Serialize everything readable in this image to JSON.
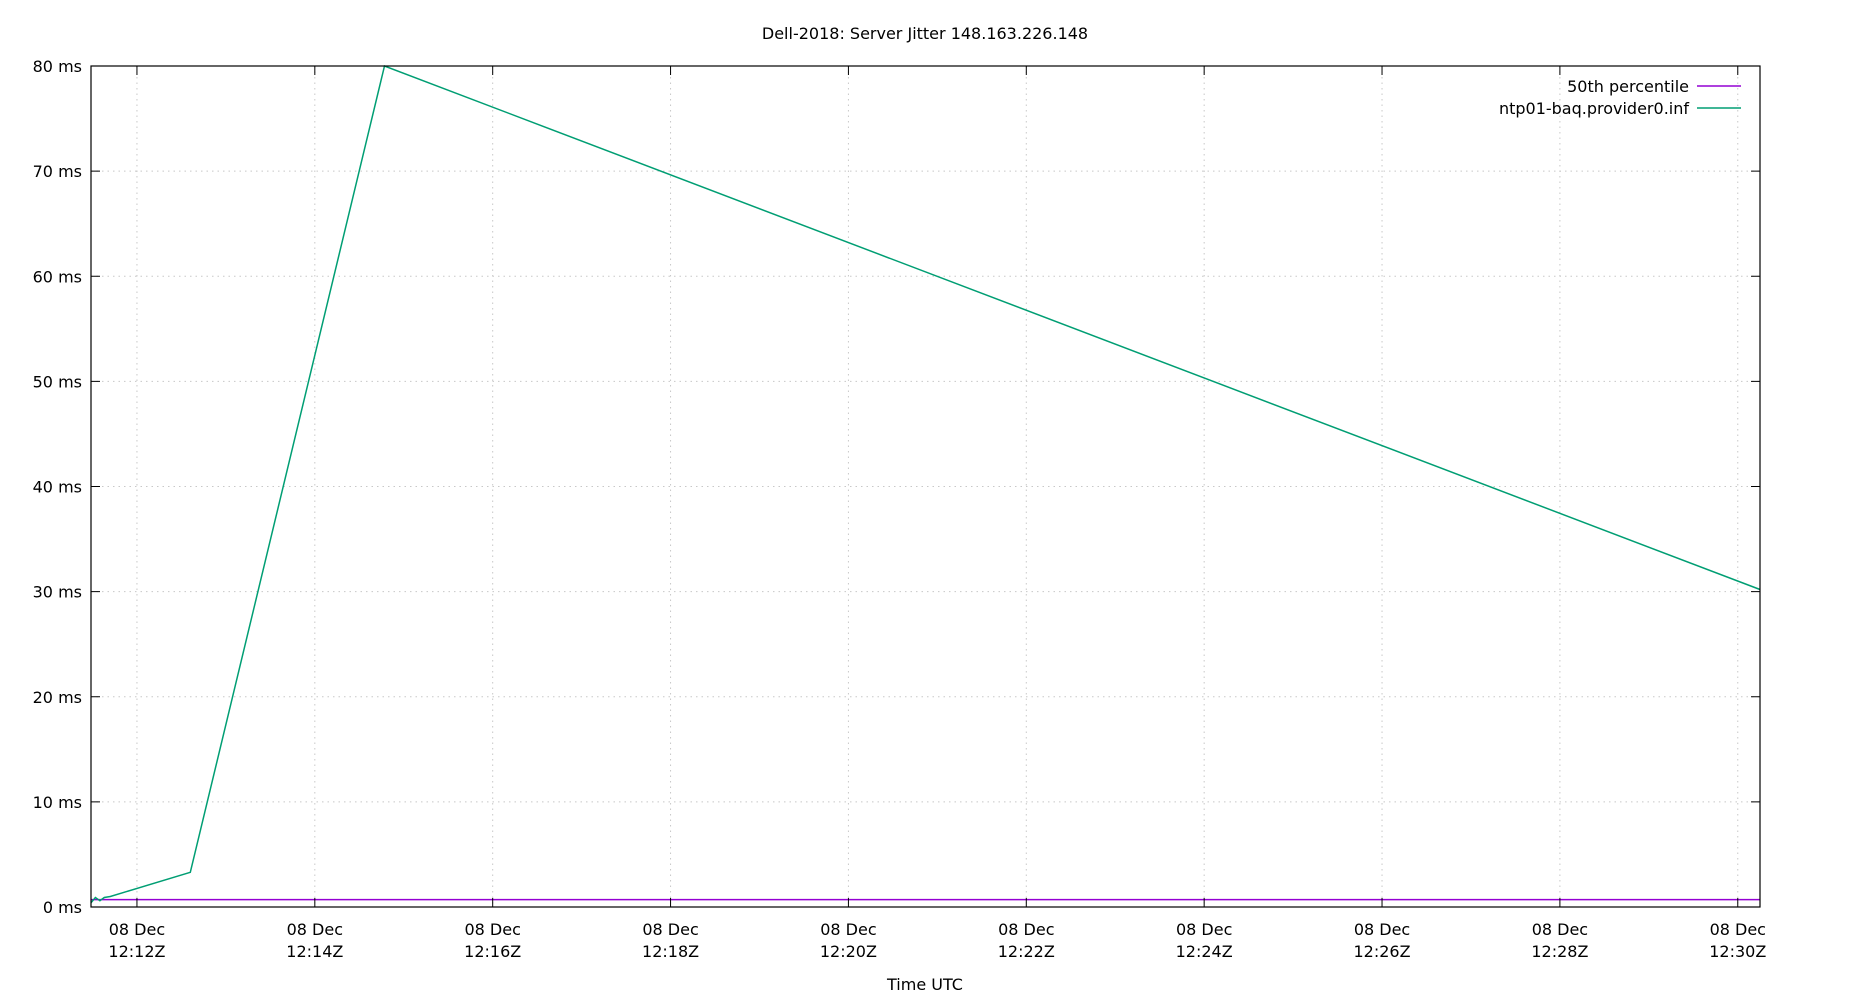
{
  "chart_data": {
    "type": "line",
    "title": "Dell-2018: Server Jitter 148.163.226.148",
    "xlabel": "Time UTC",
    "ylabel": "",
    "xlim": [
      "12:11:29",
      "12:30:15"
    ],
    "ylim": [
      0,
      80
    ],
    "grid": true,
    "legend_position": "top-right",
    "y_ticks": [
      {
        "value": 0,
        "label": "0 ms"
      },
      {
        "value": 10,
        "label": "10 ms"
      },
      {
        "value": 20,
        "label": "20 ms"
      },
      {
        "value": 30,
        "label": "30 ms"
      },
      {
        "value": 40,
        "label": "40 ms"
      },
      {
        "value": 50,
        "label": "50 ms"
      },
      {
        "value": 60,
        "label": "60 ms"
      },
      {
        "value": 70,
        "label": "70 ms"
      },
      {
        "value": 80,
        "label": "80 ms"
      }
    ],
    "x_ticks": [
      {
        "value": "12:12:00",
        "line1": "08 Dec",
        "line2": "12:12Z"
      },
      {
        "value": "12:14:00",
        "line1": "08 Dec",
        "line2": "12:14Z"
      },
      {
        "value": "12:16:00",
        "line1": "08 Dec",
        "line2": "12:16Z"
      },
      {
        "value": "12:18:00",
        "line1": "08 Dec",
        "line2": "12:18Z"
      },
      {
        "value": "12:20:00",
        "line1": "08 Dec",
        "line2": "12:20Z"
      },
      {
        "value": "12:22:00",
        "line1": "08 Dec",
        "line2": "12:22Z"
      },
      {
        "value": "12:24:00",
        "line1": "08 Dec",
        "line2": "12:24Z"
      },
      {
        "value": "12:26:00",
        "line1": "08 Dec",
        "line2": "12:26Z"
      },
      {
        "value": "12:28:00",
        "line1": "08 Dec",
        "line2": "12:28Z"
      },
      {
        "value": "12:30:00",
        "line1": "08 Dec",
        "line2": "12:30Z"
      }
    ],
    "series": [
      {
        "name": "50th percentile",
        "color": "#9400d3",
        "points": [
          [
            "12:11:29",
            0.7
          ],
          [
            "12:30:15",
            0.7
          ]
        ]
      },
      {
        "name": "ntp01-baq.provider0.inf",
        "color": "#009e73",
        "points": [
          [
            "12:11:29",
            0.4
          ],
          [
            "12:11:32",
            0.9
          ],
          [
            "12:11:35",
            0.6
          ],
          [
            "12:11:38",
            0.9
          ],
          [
            "12:11:42",
            1.0
          ],
          [
            "12:12:36",
            3.3
          ],
          [
            "12:14:47",
            80.0
          ],
          [
            "12:30:15",
            30.2
          ]
        ]
      }
    ]
  }
}
